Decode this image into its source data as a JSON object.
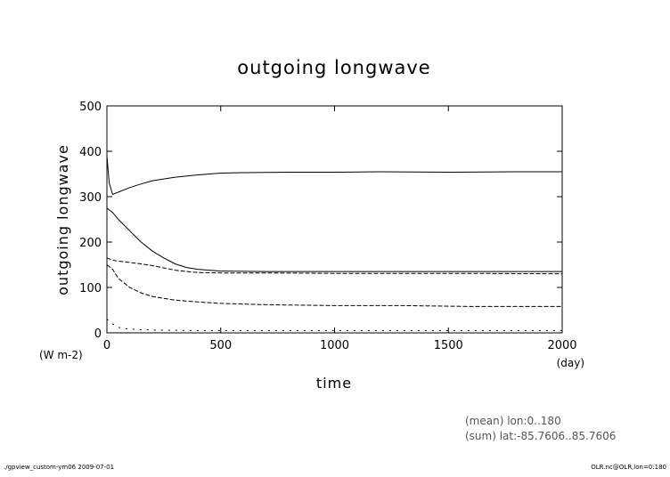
{
  "chart_data": {
    "type": "line",
    "title": "outgoing longwave",
    "xlabel": "time",
    "ylabel": "outgoing longwave",
    "x_units": "(day)",
    "y_units": "(W m-2)",
    "xlim": [
      0,
      2000
    ],
    "ylim": [
      0,
      500
    ],
    "x_ticks": [
      0,
      500,
      1000,
      1500,
      2000
    ],
    "y_ticks": [
      0,
      100,
      200,
      300,
      400,
      500
    ],
    "grid": false,
    "legend": "none",
    "series": [
      {
        "style": "solid",
        "x": [
          0,
          10,
          25,
          50,
          100,
          150,
          200,
          300,
          400,
          500,
          600,
          800,
          1000,
          1200,
          1500,
          1800,
          2000
        ],
        "y": [
          390,
          330,
          305,
          310,
          320,
          328,
          335,
          343,
          348,
          352,
          353,
          354,
          354,
          355,
          354,
          355,
          355
        ]
      },
      {
        "style": "solid",
        "x": [
          0,
          25,
          50,
          100,
          150,
          200,
          250,
          300,
          350,
          400,
          500,
          700,
          1000,
          1300,
          1600,
          2000
        ],
        "y": [
          275,
          265,
          250,
          225,
          200,
          180,
          165,
          152,
          144,
          140,
          136,
          135,
          135,
          135,
          135,
          135
        ]
      },
      {
        "style": "dashed",
        "x": [
          0,
          25,
          50,
          100,
          150,
          200,
          250,
          300,
          350,
          400,
          500,
          700,
          1000,
          1300,
          1600,
          2000
        ],
        "y": [
          165,
          160,
          158,
          155,
          152,
          148,
          143,
          138,
          135,
          133,
          132,
          132,
          131,
          131,
          131,
          130
        ]
      },
      {
        "style": "dashed",
        "x": [
          0,
          25,
          50,
          100,
          150,
          200,
          300,
          400,
          500,
          700,
          1000,
          1300,
          1600,
          2000
        ],
        "y": [
          150,
          140,
          120,
          100,
          88,
          80,
          72,
          68,
          65,
          62,
          60,
          60,
          58,
          58
        ]
      },
      {
        "style": "dotted",
        "x": [
          0,
          25,
          50,
          100,
          200,
          400,
          600,
          1000,
          1400,
          2000
        ],
        "y": [
          30,
          20,
          12,
          8,
          6,
          5,
          5,
          5,
          5,
          5
        ]
      }
    ]
  },
  "footer": {
    "stats_mean": "(mean) lon:0..180",
    "stats_sum": "(sum) lat:-85.7606..85.7606",
    "left": "./gpview_custom-ym06  2009-07-01",
    "right": "OLR.nc@OLR,lon=0:180"
  }
}
